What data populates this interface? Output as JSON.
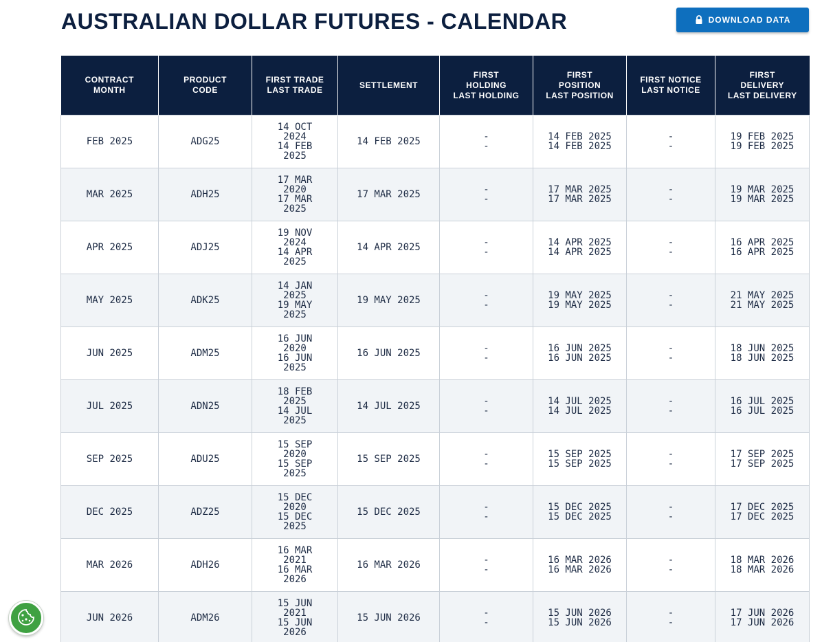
{
  "page": {
    "title": "AUSTRALIAN DOLLAR FUTURES - CALENDAR",
    "download_label": "DOWNLOAD DATA"
  },
  "colors": {
    "header_bg": "#0c1f3f",
    "button_bg": "#0e6fbe",
    "row_alt_bg": "#f1f4f7",
    "cookie_bg": "#3fa142"
  },
  "icons": {
    "download": "lock-icon",
    "cookie": "cookie-icon"
  },
  "table": {
    "headers": [
      "CONTRACT\nMONTH",
      "PRODUCT\nCODE",
      "FIRST TRADE\nLAST TRADE",
      "SETTLEMENT",
      "FIRST\nHOLDING\nLAST HOLDING",
      "FIRST\nPOSITION\nLAST POSITION",
      "FIRST NOTICE\nLAST NOTICE",
      "FIRST\nDELIVERY\nLAST DELIVERY"
    ],
    "rows": [
      {
        "month": "FEB 2025",
        "code": "ADG25",
        "trade": [
          "14 OCT",
          "2024",
          "14 FEB",
          "2025"
        ],
        "settlement": "14 FEB 2025",
        "holding": [
          "-",
          "-"
        ],
        "position": [
          "14 FEB 2025",
          "14 FEB 2025"
        ],
        "notice": [
          "-",
          "-"
        ],
        "delivery": [
          "19 FEB 2025",
          "19 FEB 2025"
        ]
      },
      {
        "month": "MAR 2025",
        "code": "ADH25",
        "trade": [
          "17 MAR",
          "2020",
          "17 MAR",
          "2025"
        ],
        "settlement": "17 MAR 2025",
        "holding": [
          "-",
          "-"
        ],
        "position": [
          "17 MAR 2025",
          "17 MAR 2025"
        ],
        "notice": [
          "-",
          "-"
        ],
        "delivery": [
          "19 MAR 2025",
          "19 MAR 2025"
        ]
      },
      {
        "month": "APR 2025",
        "code": "ADJ25",
        "trade": [
          "19 NOV",
          "2024",
          "14 APR",
          "2025"
        ],
        "settlement": "14 APR 2025",
        "holding": [
          "-",
          "-"
        ],
        "position": [
          "14 APR 2025",
          "14 APR 2025"
        ],
        "notice": [
          "-",
          "-"
        ],
        "delivery": [
          "16 APR 2025",
          "16 APR 2025"
        ]
      },
      {
        "month": "MAY 2025",
        "code": "ADK25",
        "trade": [
          "14 JAN",
          "2025",
          "19 MAY",
          "2025"
        ],
        "settlement": "19 MAY 2025",
        "holding": [
          "-",
          "-"
        ],
        "position": [
          "19 MAY 2025",
          "19 MAY 2025"
        ],
        "notice": [
          "-",
          "-"
        ],
        "delivery": [
          "21 MAY 2025",
          "21 MAY 2025"
        ]
      },
      {
        "month": "JUN 2025",
        "code": "ADM25",
        "trade": [
          "16 JUN",
          "2020",
          "16 JUN",
          "2025"
        ],
        "settlement": "16 JUN 2025",
        "holding": [
          "-",
          "-"
        ],
        "position": [
          "16 JUN 2025",
          "16 JUN 2025"
        ],
        "notice": [
          "-",
          "-"
        ],
        "delivery": [
          "18 JUN 2025",
          "18 JUN 2025"
        ]
      },
      {
        "month": "JUL 2025",
        "code": "ADN25",
        "trade": [
          "18 FEB",
          "2025",
          "14 JUL",
          "2025"
        ],
        "settlement": "14 JUL 2025",
        "holding": [
          "-",
          "-"
        ],
        "position": [
          "14 JUL 2025",
          "14 JUL 2025"
        ],
        "notice": [
          "-",
          "-"
        ],
        "delivery": [
          "16 JUL 2025",
          "16 JUL 2025"
        ]
      },
      {
        "month": "SEP 2025",
        "code": "ADU25",
        "trade": [
          "15 SEP",
          "2020",
          "15 SEP",
          "2025"
        ],
        "settlement": "15 SEP 2025",
        "holding": [
          "-",
          "-"
        ],
        "position": [
          "15 SEP 2025",
          "15 SEP 2025"
        ],
        "notice": [
          "-",
          "-"
        ],
        "delivery": [
          "17 SEP 2025",
          "17 SEP 2025"
        ]
      },
      {
        "month": "DEC 2025",
        "code": "ADZ25",
        "trade": [
          "15 DEC",
          "2020",
          "15 DEC",
          "2025"
        ],
        "settlement": "15 DEC 2025",
        "holding": [
          "-",
          "-"
        ],
        "position": [
          "15 DEC 2025",
          "15 DEC 2025"
        ],
        "notice": [
          "-",
          "-"
        ],
        "delivery": [
          "17 DEC 2025",
          "17 DEC 2025"
        ]
      },
      {
        "month": "MAR 2026",
        "code": "ADH26",
        "trade": [
          "16 MAR",
          "2021",
          "16 MAR",
          "2026"
        ],
        "settlement": "16 MAR 2026",
        "holding": [
          "-",
          "-"
        ],
        "position": [
          "16 MAR 2026",
          "16 MAR 2026"
        ],
        "notice": [
          "-",
          "-"
        ],
        "delivery": [
          "18 MAR 2026",
          "18 MAR 2026"
        ]
      },
      {
        "month": "JUN 2026",
        "code": "ADM26",
        "trade": [
          "15 JUN",
          "2021",
          "15 JUN",
          "2026"
        ],
        "settlement": "15 JUN 2026",
        "holding": [
          "-",
          "-"
        ],
        "position": [
          "15 JUN 2026",
          "15 JUN 2026"
        ],
        "notice": [
          "-",
          "-"
        ],
        "delivery": [
          "17 JUN 2026",
          "17 JUN 2026"
        ]
      }
    ]
  }
}
